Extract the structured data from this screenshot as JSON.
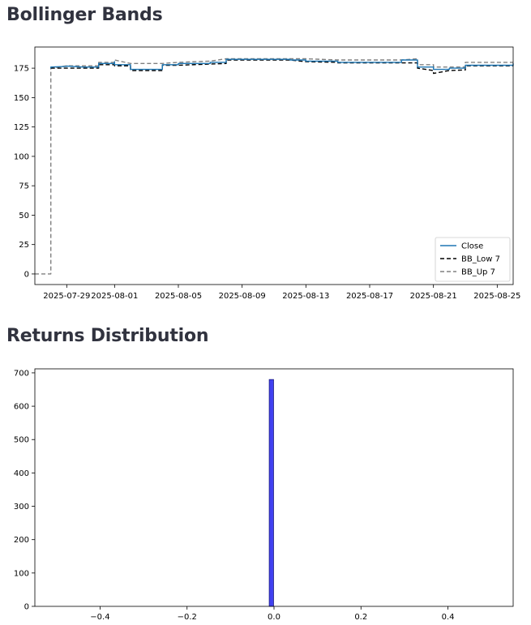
{
  "sections": {
    "bollinger_title": "Bollinger Bands",
    "returns_title": "Returns Distribution"
  },
  "colors": {
    "close": "#1f77b4",
    "bb_low": "#000000",
    "bb_up": "#808080",
    "hist_fill": "#4141f0",
    "hist_edge": "#1a1a80",
    "axes": "#000000"
  },
  "chart_data": [
    {
      "type": "line",
      "title": "",
      "xlabel": "",
      "ylabel": "",
      "x_type": "date",
      "xlim": [
        "2025-07-27",
        "2025-08-26"
      ],
      "ylim": [
        -9,
        193
      ],
      "x_ticks": [
        "2025-07-29",
        "2025-08-01",
        "2025-08-05",
        "2025-08-09",
        "2025-08-13",
        "2025-08-17",
        "2025-08-21",
        "2025-08-25"
      ],
      "x_tick_labels": [
        "2025-07-29",
        "2025-08-01",
        "2025-08-05",
        "2025-08-09",
        "2025-08-13",
        "2025-08-17",
        "2025-08-21",
        "2025-08-25"
      ],
      "y_ticks": [
        0,
        25,
        50,
        75,
        100,
        125,
        150,
        175
      ],
      "y_tick_labels": [
        "0",
        "25",
        "50",
        "75",
        "100",
        "125",
        "150",
        "175"
      ],
      "grid": false,
      "legend_position": "lower-right",
      "series": [
        {
          "name": "Close",
          "style": "solid",
          "points": [
            [
              "2025-07-28",
              175
            ],
            [
              "2025-07-28",
              176
            ],
            [
              "2025-07-29",
              176.5
            ],
            [
              "2025-07-29",
              176.8
            ],
            [
              "2025-07-30",
              176
            ],
            [
              "2025-07-31",
              176
            ],
            [
              "2025-07-31",
              179
            ],
            [
              "2025-08-01",
              179
            ],
            [
              "2025-08-01",
              180.5
            ],
            [
              "2025-08-01",
              178
            ],
            [
              "2025-08-02",
              178
            ],
            [
              "2025-08-02",
              174
            ],
            [
              "2025-08-04",
              174
            ],
            [
              "2025-08-04",
              178
            ],
            [
              "2025-08-05",
              178
            ],
            [
              "2025-08-05",
              179
            ],
            [
              "2025-08-07",
              179
            ],
            [
              "2025-08-07",
              180
            ],
            [
              "2025-08-08",
              180
            ],
            [
              "2025-08-08",
              182.5
            ],
            [
              "2025-08-12",
              182.5
            ],
            [
              "2025-08-12",
              182
            ],
            [
              "2025-08-13",
              182
            ],
            [
              "2025-08-13",
              181
            ],
            [
              "2025-08-15",
              181
            ],
            [
              "2025-08-15",
              180
            ],
            [
              "2025-08-19",
              180
            ],
            [
              "2025-08-19",
              182
            ],
            [
              "2025-08-20",
              182
            ],
            [
              "2025-08-20",
              176
            ],
            [
              "2025-08-21",
              176
            ],
            [
              "2025-08-21",
              174
            ],
            [
              "2025-08-22",
              174
            ],
            [
              "2025-08-22",
              175
            ],
            [
              "2025-08-23",
              175
            ],
            [
              "2025-08-23",
              177.5
            ],
            [
              "2025-08-26",
              177.5
            ],
            [
              "2025-08-26",
              179
            ]
          ]
        },
        {
          "name": "BB_Low 7",
          "style": "dashed",
          "points": [
            [
              "2025-07-28",
              175
            ],
            [
              "2025-07-29",
              175
            ],
            [
              "2025-07-30",
              175
            ],
            [
              "2025-07-31",
              175
            ],
            [
              "2025-07-31",
              178
            ],
            [
              "2025-08-01",
              178
            ],
            [
              "2025-08-01",
              177
            ],
            [
              "2025-08-02",
              177
            ],
            [
              "2025-08-02",
              173
            ],
            [
              "2025-08-04",
              173
            ],
            [
              "2025-08-04",
              177.5
            ],
            [
              "2025-08-05",
              177.5
            ],
            [
              "2025-08-07",
              178.5
            ],
            [
              "2025-08-08",
              179
            ],
            [
              "2025-08-08",
              182
            ],
            [
              "2025-08-12",
              182
            ],
            [
              "2025-08-13",
              180.5
            ],
            [
              "2025-08-15",
              180
            ],
            [
              "2025-08-15",
              179.5
            ],
            [
              "2025-08-19",
              179.5
            ],
            [
              "2025-08-20",
              179.5
            ],
            [
              "2025-08-20",
              175
            ],
            [
              "2025-08-21",
              173
            ],
            [
              "2025-08-21",
              170.5
            ],
            [
              "2025-08-22",
              173
            ],
            [
              "2025-08-23",
              173.5
            ],
            [
              "2025-08-23",
              177
            ],
            [
              "2025-08-26",
              177
            ]
          ]
        },
        {
          "name": "BB_Up 7",
          "style": "dashed",
          "points": [
            [
              "2025-07-27",
              0
            ],
            [
              "2025-07-28",
              0
            ],
            [
              "2025-07-28",
              175
            ],
            [
              "2025-07-29",
              177
            ],
            [
              "2025-07-31",
              177
            ],
            [
              "2025-07-31",
              180
            ],
            [
              "2025-08-01",
              180
            ],
            [
              "2025-08-01",
              182
            ],
            [
              "2025-08-02",
              179
            ],
            [
              "2025-08-04",
              179
            ],
            [
              "2025-08-05",
              180
            ],
            [
              "2025-08-07",
              181
            ],
            [
              "2025-08-08",
              183
            ],
            [
              "2025-08-12",
              183
            ],
            [
              "2025-08-13",
              183
            ],
            [
              "2025-08-15",
              182
            ],
            [
              "2025-08-19",
              182
            ],
            [
              "2025-08-20",
              183
            ],
            [
              "2025-08-20",
              178
            ],
            [
              "2025-08-21",
              178
            ],
            [
              "2025-08-21",
              176
            ],
            [
              "2025-08-22",
              176
            ],
            [
              "2025-08-23",
              176
            ],
            [
              "2025-08-23",
              180
            ],
            [
              "2025-08-26",
              180
            ]
          ]
        }
      ]
    },
    {
      "type": "bar",
      "title": "",
      "xlabel": "",
      "ylabel": "",
      "xlim": [
        -0.55,
        0.55
      ],
      "ylim": [
        0,
        712
      ],
      "x_ticks": [
        -0.4,
        -0.2,
        0.0,
        0.2,
        0.4
      ],
      "x_tick_labels": [
        "−0.4",
        "−0.2",
        "0.0",
        "0.2",
        "0.4"
      ],
      "y_ticks": [
        0,
        100,
        200,
        300,
        400,
        500,
        600,
        700
      ],
      "y_tick_labels": [
        "0",
        "100",
        "200",
        "300",
        "400",
        "500",
        "600",
        "700"
      ],
      "grid": false,
      "bins": [
        {
          "x0": -0.011,
          "x1": -0.001,
          "count": 680
        }
      ]
    }
  ]
}
